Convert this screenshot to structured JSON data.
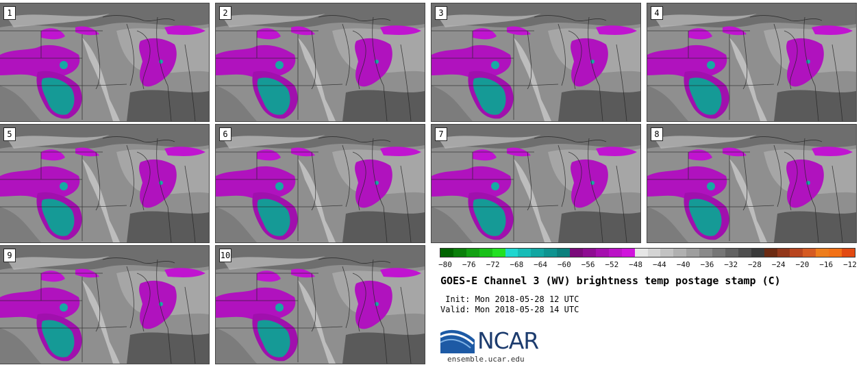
{
  "title": "GOES-E Channel 3 (WV) brightness temp postage stamp (C)",
  "init": " Init: Mon 2018-05-28 12 UTC",
  "valid": "Valid: Mon 2018-05-28 14 UTC",
  "panels": [
    {
      "label": "1"
    },
    {
      "label": "2"
    },
    {
      "label": "3"
    },
    {
      "label": "4"
    },
    {
      "label": "5"
    },
    {
      "label": "6"
    },
    {
      "label": "7"
    },
    {
      "label": "8"
    },
    {
      "label": "9"
    },
    {
      "label": "10"
    }
  ],
  "colorbar": {
    "ticks": [
      "−80",
      "−76",
      "−72",
      "−68",
      "−64",
      "−60",
      "−56",
      "−52",
      "−48",
      "−44",
      "−40",
      "−36",
      "−32",
      "−28",
      "−24",
      "−20",
      "−16",
      "−12"
    ],
    "colors": [
      "#006400",
      "#0a7f0a",
      "#12a012",
      "#18c018",
      "#22e022",
      "#1fd6cf",
      "#17bcb7",
      "#12a6a2",
      "#0e9390",
      "#0b7f7d",
      "#7a0a7a",
      "#8e0c92",
      "#a50fae",
      "#bb12c6",
      "#d013dc",
      "#e6e6e6",
      "#d4d4d4",
      "#c2c2c2",
      "#b0b0b0",
      "#9e9e9e",
      "#8a8a8a",
      "#767676",
      "#626262",
      "#4e4e4e",
      "#3a3a3a",
      "#6b2a12",
      "#92371a",
      "#b8451f",
      "#d55a22",
      "#ee7d1c",
      "#f27116",
      "#e24a12"
    ]
  },
  "logo": {
    "text": "NCAR",
    "site": "ensemble.ucar.edu"
  }
}
